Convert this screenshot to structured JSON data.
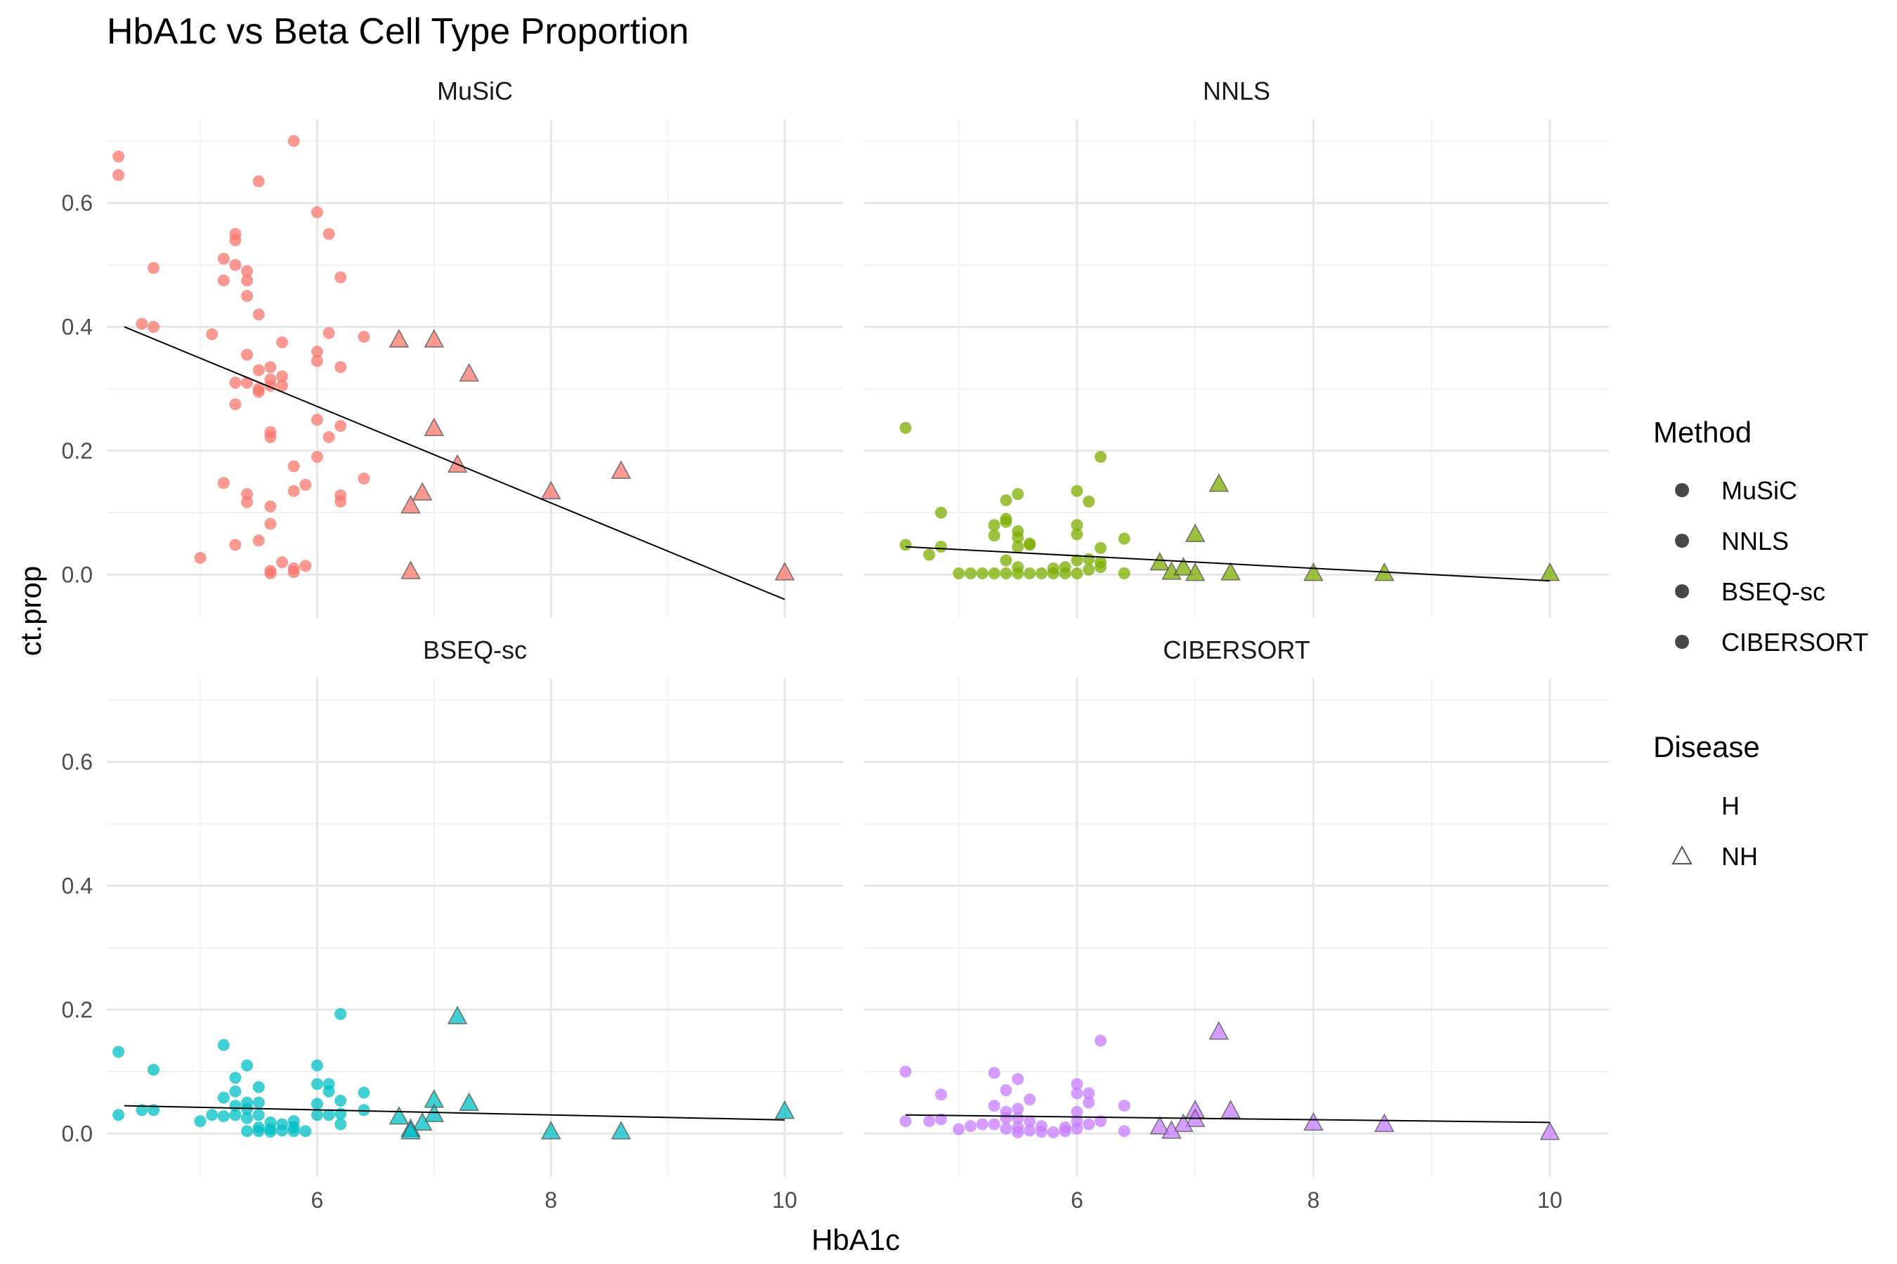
{
  "chart_data": {
    "type": "scatter",
    "title": "HbA1c vs Beta Cell Type Proportion",
    "xlabel": "HbA1c",
    "ylabel": "ct.prop",
    "xlim": [
      4.2,
      10.5
    ],
    "ylim": [
      -0.07,
      0.735
    ],
    "x_ticks": [
      "6",
      "8",
      "10"
    ],
    "y_ticks": [
      "0.0",
      "0.2",
      "0.4",
      "0.6"
    ],
    "grid": true,
    "legend_position": "right",
    "legend": {
      "method_title": "Method",
      "methods": [
        {
          "label": "MuSiC",
          "color": "#F8766D"
        },
        {
          "label": "NNLS",
          "color": "#7CAE00"
        },
        {
          "label": "BSEQ-sc",
          "color": "#00BFC4"
        },
        {
          "label": "CIBERSORT",
          "color": "#C77CFF"
        }
      ],
      "disease_title": "Disease",
      "diseases": [
        {
          "label": "H",
          "shape": "none"
        },
        {
          "label": "NH",
          "shape": "triangle"
        }
      ]
    },
    "panels": [
      {
        "name": "MuSiC",
        "color": "#F8766D",
        "fit": [
          [
            4.35,
            0.4
          ],
          [
            10,
            -0.04
          ]
        ],
        "H": [
          [
            4.3,
            0.675
          ],
          [
            4.3,
            0.645
          ],
          [
            4.5,
            0.405
          ],
          [
            4.6,
            0.495
          ],
          [
            4.6,
            0.4
          ],
          [
            5.0,
            0.027
          ],
          [
            5.1,
            0.388
          ],
          [
            5.2,
            0.51
          ],
          [
            5.2,
            0.475
          ],
          [
            5.2,
            0.148
          ],
          [
            5.3,
            0.55
          ],
          [
            5.3,
            0.54
          ],
          [
            5.3,
            0.5
          ],
          [
            5.3,
            0.31
          ],
          [
            5.3,
            0.275
          ],
          [
            5.3,
            0.048
          ],
          [
            5.4,
            0.49
          ],
          [
            5.4,
            0.475
          ],
          [
            5.4,
            0.45
          ],
          [
            5.4,
            0.355
          ],
          [
            5.4,
            0.31
          ],
          [
            5.4,
            0.13
          ],
          [
            5.4,
            0.117
          ],
          [
            5.5,
            0.635
          ],
          [
            5.5,
            0.42
          ],
          [
            5.5,
            0.33
          ],
          [
            5.5,
            0.3
          ],
          [
            5.5,
            0.295
          ],
          [
            5.5,
            0.055
          ],
          [
            5.6,
            0.335
          ],
          [
            5.6,
            0.315
          ],
          [
            5.6,
            0.305
          ],
          [
            5.6,
            0.23
          ],
          [
            5.6,
            0.222
          ],
          [
            5.6,
            0.11
          ],
          [
            5.6,
            0.082
          ],
          [
            5.6,
            0.006
          ],
          [
            5.6,
            0.002
          ],
          [
            5.7,
            0.375
          ],
          [
            5.7,
            0.32
          ],
          [
            5.7,
            0.305
          ],
          [
            5.7,
            0.02
          ],
          [
            5.8,
            0.7
          ],
          [
            5.8,
            0.175
          ],
          [
            5.8,
            0.135
          ],
          [
            5.8,
            0.01
          ],
          [
            5.8,
            0.004
          ],
          [
            5.9,
            0.145
          ],
          [
            5.9,
            0.014
          ],
          [
            6.0,
            0.585
          ],
          [
            6.0,
            0.36
          ],
          [
            6.0,
            0.345
          ],
          [
            6.0,
            0.25
          ],
          [
            6.0,
            0.19
          ],
          [
            6.1,
            0.55
          ],
          [
            6.1,
            0.39
          ],
          [
            6.1,
            0.222
          ],
          [
            6.2,
            0.48
          ],
          [
            6.2,
            0.335
          ],
          [
            6.2,
            0.24
          ],
          [
            6.2,
            0.128
          ],
          [
            6.2,
            0.118
          ],
          [
            6.4,
            0.384
          ],
          [
            6.4,
            0.155
          ]
        ],
        "NH": [
          [
            6.7,
            0.38
          ],
          [
            7.0,
            0.38
          ],
          [
            7.3,
            0.325
          ],
          [
            7.0,
            0.237
          ],
          [
            7.2,
            0.178
          ],
          [
            8.6,
            0.168
          ],
          [
            8.0,
            0.135
          ],
          [
            6.9,
            0.133
          ],
          [
            6.8,
            0.112
          ],
          [
            6.8,
            0.006
          ],
          [
            10.0,
            0.004
          ]
        ]
      },
      {
        "name": "NNLS",
        "color": "#7CAE00",
        "fit": [
          [
            4.55,
            0.045
          ],
          [
            10,
            -0.01
          ]
        ],
        "H": [
          [
            4.55,
            0.237
          ],
          [
            4.55,
            0.048
          ],
          [
            4.75,
            0.032
          ],
          [
            4.85,
            0.1
          ],
          [
            4.85,
            0.045
          ],
          [
            5.0,
            0.002
          ],
          [
            5.1,
            0.002
          ],
          [
            5.2,
            0.002
          ],
          [
            5.3,
            0.08
          ],
          [
            5.3,
            0.063
          ],
          [
            5.3,
            0.002
          ],
          [
            5.4,
            0.12
          ],
          [
            5.4,
            0.09
          ],
          [
            5.4,
            0.085
          ],
          [
            5.4,
            0.023
          ],
          [
            5.4,
            0.002
          ],
          [
            5.5,
            0.13
          ],
          [
            5.5,
            0.07
          ],
          [
            5.5,
            0.06
          ],
          [
            5.5,
            0.045
          ],
          [
            5.5,
            0.012
          ],
          [
            5.5,
            0.002
          ],
          [
            5.6,
            0.05
          ],
          [
            5.6,
            0.048
          ],
          [
            5.6,
            0.002
          ],
          [
            5.7,
            0.002
          ],
          [
            5.8,
            0.01
          ],
          [
            5.8,
            0.002
          ],
          [
            5.9,
            0.012
          ],
          [
            5.9,
            0.002
          ],
          [
            6.0,
            0.135
          ],
          [
            6.0,
            0.08
          ],
          [
            6.0,
            0.065
          ],
          [
            6.0,
            0.023
          ],
          [
            6.0,
            0.002
          ],
          [
            6.1,
            0.118
          ],
          [
            6.1,
            0.025
          ],
          [
            6.1,
            0.008
          ],
          [
            6.2,
            0.19
          ],
          [
            6.2,
            0.043
          ],
          [
            6.2,
            0.02
          ],
          [
            6.2,
            0.012
          ],
          [
            6.4,
            0.058
          ],
          [
            6.4,
            0.002
          ]
        ],
        "NH": [
          [
            7.2,
            0.147
          ],
          [
            7.0,
            0.066
          ],
          [
            6.7,
            0.02
          ],
          [
            6.8,
            0.005
          ],
          [
            6.9,
            0.012
          ],
          [
            7.0,
            0.003
          ],
          [
            7.3,
            0.004
          ],
          [
            8.0,
            0.003
          ],
          [
            8.6,
            0.003
          ],
          [
            10.0,
            0.003
          ]
        ]
      },
      {
        "name": "BSEQ-sc",
        "color": "#00BFC4",
        "fit": [
          [
            4.35,
            0.045
          ],
          [
            10,
            0.022
          ]
        ],
        "H": [
          [
            4.3,
            0.132
          ],
          [
            4.3,
            0.03
          ],
          [
            4.5,
            0.038
          ],
          [
            4.6,
            0.103
          ],
          [
            4.6,
            0.038
          ],
          [
            5.0,
            0.02
          ],
          [
            5.1,
            0.03
          ],
          [
            5.2,
            0.143
          ],
          [
            5.2,
            0.058
          ],
          [
            5.2,
            0.028
          ],
          [
            5.3,
            0.09
          ],
          [
            5.3,
            0.068
          ],
          [
            5.3,
            0.045
          ],
          [
            5.3,
            0.03
          ],
          [
            5.4,
            0.11
          ],
          [
            5.4,
            0.05
          ],
          [
            5.4,
            0.04
          ],
          [
            5.4,
            0.025
          ],
          [
            5.4,
            0.004
          ],
          [
            5.5,
            0.075
          ],
          [
            5.5,
            0.05
          ],
          [
            5.5,
            0.03
          ],
          [
            5.5,
            0.01
          ],
          [
            5.5,
            0.004
          ],
          [
            5.6,
            0.018
          ],
          [
            5.6,
            0.008
          ],
          [
            5.6,
            0.003
          ],
          [
            5.7,
            0.015
          ],
          [
            5.7,
            0.005
          ],
          [
            5.8,
            0.02
          ],
          [
            5.8,
            0.01
          ],
          [
            5.8,
            0.004
          ],
          [
            5.9,
            0.004
          ],
          [
            6.0,
            0.11
          ],
          [
            6.0,
            0.08
          ],
          [
            6.0,
            0.048
          ],
          [
            6.0,
            0.03
          ],
          [
            6.1,
            0.08
          ],
          [
            6.1,
            0.068
          ],
          [
            6.1,
            0.03
          ],
          [
            6.2,
            0.193
          ],
          [
            6.2,
            0.053
          ],
          [
            6.2,
            0.032
          ],
          [
            6.2,
            0.015
          ],
          [
            6.4,
            0.066
          ],
          [
            6.4,
            0.038
          ]
        ],
        "NH": [
          [
            7.2,
            0.19
          ],
          [
            7.0,
            0.055
          ],
          [
            7.3,
            0.05
          ],
          [
            6.7,
            0.028
          ],
          [
            7.0,
            0.032
          ],
          [
            6.9,
            0.018
          ],
          [
            6.8,
            0.008
          ],
          [
            6.8,
            0.004
          ],
          [
            8.0,
            0.004
          ],
          [
            8.6,
            0.004
          ],
          [
            10.0,
            0.037
          ]
        ]
      },
      {
        "name": "CIBERSORT",
        "color": "#C77CFF",
        "fit": [
          [
            4.55,
            0.03
          ],
          [
            10,
            0.018
          ]
        ],
        "H": [
          [
            4.55,
            0.1
          ],
          [
            4.55,
            0.02
          ],
          [
            4.75,
            0.02
          ],
          [
            4.85,
            0.063
          ],
          [
            4.85,
            0.023
          ],
          [
            5.0,
            0.007
          ],
          [
            5.1,
            0.012
          ],
          [
            5.2,
            0.015
          ],
          [
            5.3,
            0.098
          ],
          [
            5.3,
            0.045
          ],
          [
            5.3,
            0.015
          ],
          [
            5.4,
            0.07
          ],
          [
            5.4,
            0.035
          ],
          [
            5.4,
            0.025
          ],
          [
            5.4,
            0.008
          ],
          [
            5.5,
            0.088
          ],
          [
            5.5,
            0.04
          ],
          [
            5.5,
            0.025
          ],
          [
            5.5,
            0.01
          ],
          [
            5.5,
            0.002
          ],
          [
            5.6,
            0.055
          ],
          [
            5.6,
            0.02
          ],
          [
            5.6,
            0.005
          ],
          [
            5.7,
            0.012
          ],
          [
            5.7,
            0.003
          ],
          [
            5.8,
            0.002
          ],
          [
            5.9,
            0.01
          ],
          [
            5.9,
            0.004
          ],
          [
            6.0,
            0.08
          ],
          [
            6.0,
            0.065
          ],
          [
            6.0,
            0.035
          ],
          [
            6.0,
            0.02
          ],
          [
            6.0,
            0.008
          ],
          [
            6.1,
            0.065
          ],
          [
            6.1,
            0.05
          ],
          [
            6.1,
            0.015
          ],
          [
            6.2,
            0.15
          ],
          [
            6.2,
            0.02
          ],
          [
            6.4,
            0.045
          ],
          [
            6.4,
            0.004
          ]
        ],
        "NH": [
          [
            7.2,
            0.165
          ],
          [
            7.0,
            0.038
          ],
          [
            7.3,
            0.038
          ],
          [
            7.0,
            0.024
          ],
          [
            6.9,
            0.016
          ],
          [
            6.7,
            0.012
          ],
          [
            6.8,
            0.005
          ],
          [
            8.0,
            0.018
          ],
          [
            8.6,
            0.016
          ],
          [
            10.0,
            0.003
          ]
        ]
      }
    ]
  }
}
